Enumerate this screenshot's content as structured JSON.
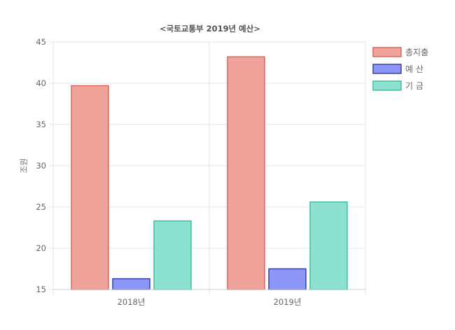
{
  "chart_data": {
    "type": "bar",
    "title": "<국토교통부 2019년 예산>",
    "ylabel": "조원",
    "xlabel": "",
    "categories": [
      "2018년",
      "2019년"
    ],
    "ylim": [
      15,
      45
    ],
    "yticks": [
      15,
      20,
      25,
      30,
      35,
      40,
      45
    ],
    "grid": true,
    "legend_position": "top-right",
    "series": [
      {
        "name": "총지출",
        "values": [
          39.7,
          43.2
        ],
        "fill": "#f0a39b",
        "stroke": "#d9695e"
      },
      {
        "name": "예 산",
        "values": [
          16.3,
          17.5
        ],
        "fill": "#8c96f7",
        "stroke": "#3b42a3"
      },
      {
        "name": "기 금",
        "values": [
          23.3,
          25.6
        ],
        "fill": "#8ce1d0",
        "stroke": "#3fbf9f"
      }
    ]
  }
}
